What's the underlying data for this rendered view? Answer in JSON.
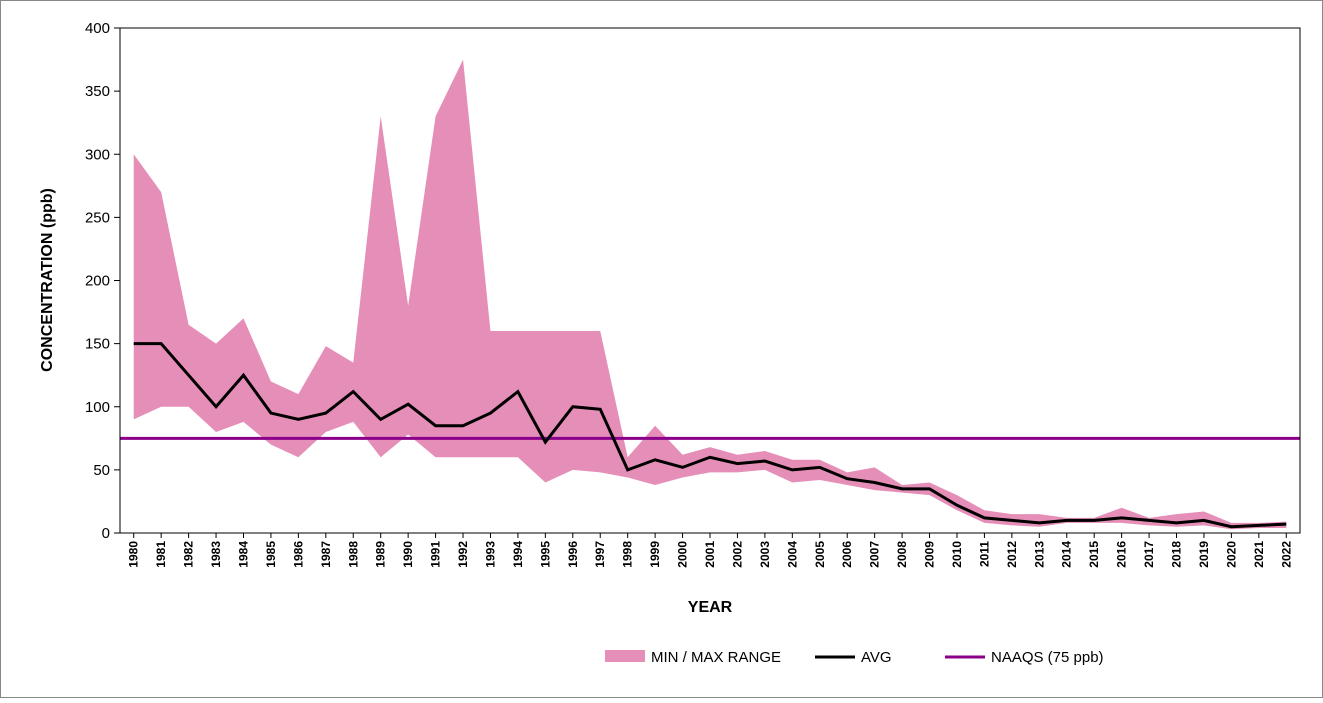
{
  "chart_data": {
    "type": "range-line",
    "y_label": "CONCENTRATION (ppb)",
    "x_label": "YEAR",
    "categories": [
      "1980",
      "1981",
      "1982",
      "1983",
      "1984",
      "1985",
      "1986",
      "1987",
      "1988",
      "1989",
      "1990",
      "1991",
      "1992",
      "1993",
      "1994",
      "1995",
      "1996",
      "1997",
      "1998",
      "1999",
      "2000",
      "2001",
      "2002",
      "2003",
      "2004",
      "2005",
      "2006",
      "2007",
      "2008",
      "2009",
      "2010",
      "2011",
      "2012",
      "2013",
      "2014",
      "2015",
      "2016",
      "2017",
      "2018",
      "2019",
      "2020",
      "2021",
      "2022"
    ],
    "range": {
      "name": "MIN / MAX RANGE",
      "color": "#e58fb8",
      "min": [
        90,
        100,
        100,
        80,
        88,
        70,
        60,
        80,
        88,
        60,
        78,
        60,
        60,
        60,
        60,
        40,
        50,
        48,
        44,
        38,
        44,
        48,
        48,
        50,
        40,
        42,
        38,
        34,
        32,
        30,
        18,
        8,
        6,
        5,
        8,
        8,
        8,
        6,
        5,
        6,
        3,
        4,
        4
      ],
      "max": [
        300,
        270,
        165,
        150,
        170,
        120,
        110,
        148,
        135,
        330,
        180,
        330,
        375,
        160,
        160,
        160,
        160,
        160,
        60,
        85,
        62,
        68,
        62,
        65,
        58,
        58,
        48,
        52,
        38,
        40,
        30,
        18,
        15,
        15,
        12,
        12,
        20,
        12,
        15,
        17,
        8,
        8,
        9
      ]
    },
    "series": [
      {
        "name": "AVG",
        "color": "#000000",
        "values": [
          150,
          150,
          125,
          100,
          125,
          95,
          90,
          95,
          112,
          90,
          102,
          85,
          85,
          95,
          112,
          72,
          100,
          98,
          50,
          58,
          52,
          60,
          55,
          57,
          50,
          52,
          43,
          40,
          35,
          35,
          22,
          12,
          10,
          8,
          10,
          10,
          12,
          10,
          8,
          10,
          5,
          6,
          7
        ]
      }
    ],
    "reference": {
      "name": "NAAQS (75 ppb)",
      "value": 75,
      "color": "#8b008b"
    },
    "ylim": [
      0,
      400
    ],
    "yticks": [
      0,
      50,
      100,
      150,
      200,
      250,
      300,
      350,
      400
    ],
    "legend": "bottom"
  }
}
